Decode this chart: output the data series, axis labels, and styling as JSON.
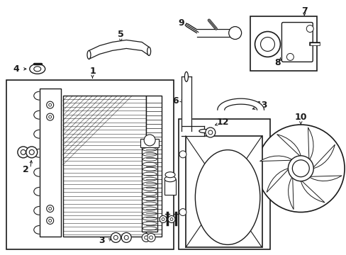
{
  "bg_color": "#ffffff",
  "line_color": "#1a1a1a",
  "fig_width": 4.89,
  "fig_height": 3.6,
  "dpi": 100,
  "lc": "#1a1a1a"
}
